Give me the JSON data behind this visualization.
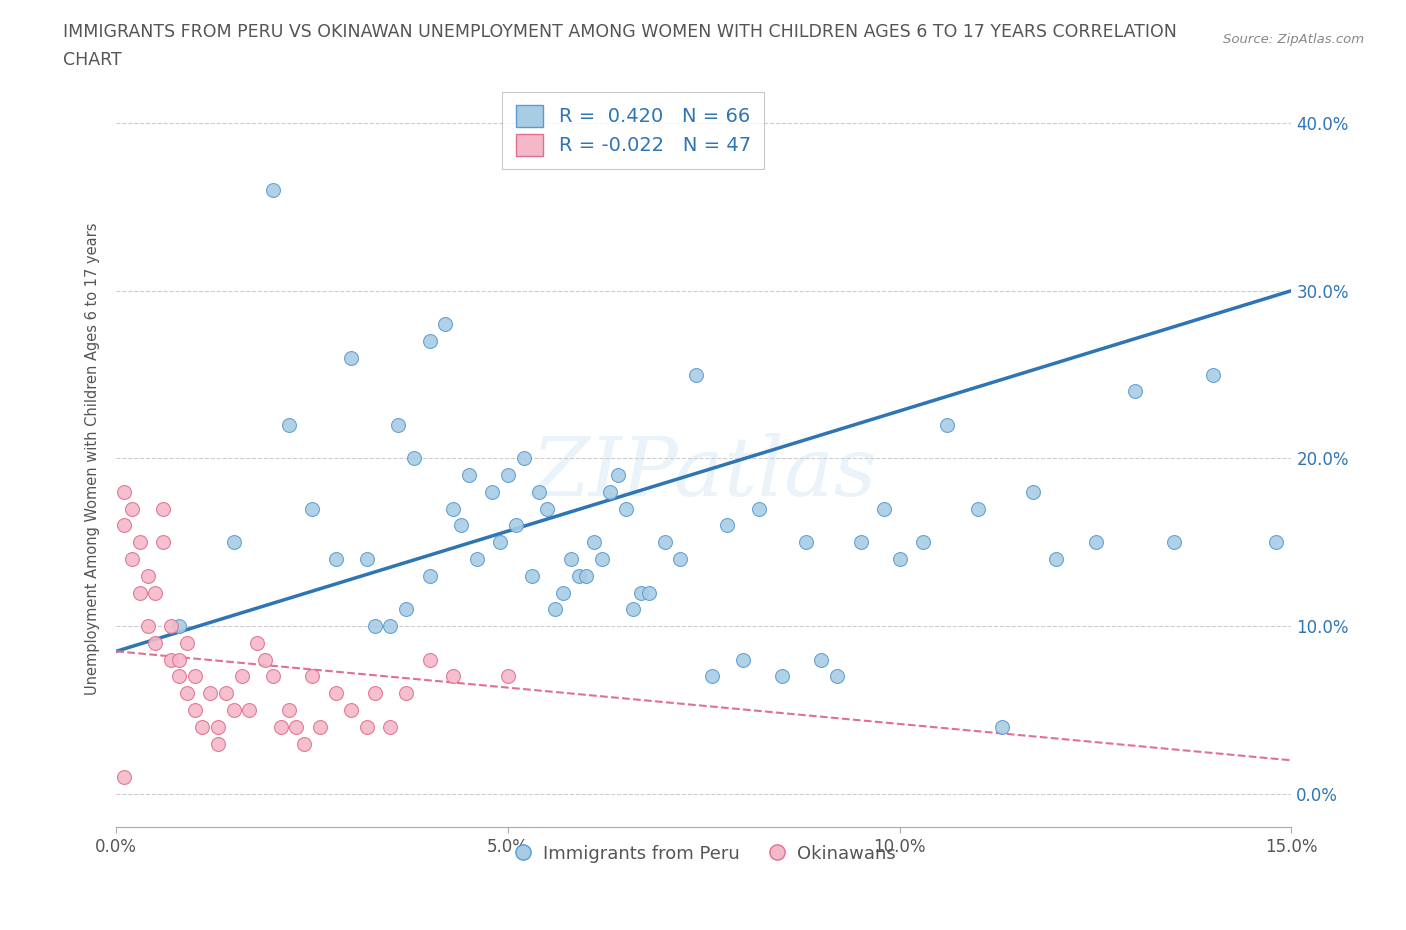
{
  "title_line1": "IMMIGRANTS FROM PERU VS OKINAWAN UNEMPLOYMENT AMONG WOMEN WITH CHILDREN AGES 6 TO 17 YEARS CORRELATION",
  "title_line2": "CHART",
  "source": "Source: ZipAtlas.com",
  "watermark": "ZIPatlas",
  "ylabel": "Unemployment Among Women with Children Ages 6 to 17 years",
  "xlim": [
    0.0,
    0.15
  ],
  "ylim": [
    -0.02,
    0.42
  ],
  "xticks": [
    0.0,
    0.05,
    0.1,
    0.15
  ],
  "xtick_labels": [
    "0.0%",
    "5.0%",
    "10.0%",
    "15.0%"
  ],
  "yticks": [
    0.0,
    0.1,
    0.2,
    0.3,
    0.4
  ],
  "ytick_labels": [
    "0.0%",
    "10.0%",
    "20.0%",
    "30.0%",
    "40.0%"
  ],
  "blue_color": "#a8cce4",
  "blue_edge_color": "#5b9bd5",
  "pink_color": "#f4b8c8",
  "pink_edge_color": "#e07090",
  "blue_line_color": "#2e75b6",
  "pink_line_color": "#e07090",
  "blue_R": 0.42,
  "blue_N": 66,
  "pink_R": -0.022,
  "pink_N": 47,
  "legend_label_blue": "Immigrants from Peru",
  "legend_label_pink": "Okinawans",
  "grid_color": "#c8c8c8",
  "background_color": "#ffffff",
  "blue_scatter_x": [
    0.008,
    0.015,
    0.02,
    0.022,
    0.025,
    0.028,
    0.03,
    0.032,
    0.033,
    0.035,
    0.036,
    0.037,
    0.038,
    0.04,
    0.04,
    0.042,
    0.043,
    0.044,
    0.045,
    0.046,
    0.048,
    0.049,
    0.05,
    0.051,
    0.052,
    0.053,
    0.054,
    0.055,
    0.056,
    0.057,
    0.058,
    0.059,
    0.06,
    0.061,
    0.062,
    0.063,
    0.064,
    0.065,
    0.066,
    0.067,
    0.068,
    0.07,
    0.072,
    0.074,
    0.076,
    0.078,
    0.08,
    0.082,
    0.085,
    0.088,
    0.09,
    0.092,
    0.095,
    0.098,
    0.1,
    0.103,
    0.106,
    0.11,
    0.113,
    0.117,
    0.12,
    0.125,
    0.13,
    0.135,
    0.14,
    0.148
  ],
  "blue_scatter_y": [
    0.1,
    0.15,
    0.36,
    0.22,
    0.17,
    0.14,
    0.26,
    0.14,
    0.1,
    0.1,
    0.22,
    0.11,
    0.2,
    0.13,
    0.27,
    0.28,
    0.17,
    0.16,
    0.19,
    0.14,
    0.18,
    0.15,
    0.19,
    0.16,
    0.2,
    0.13,
    0.18,
    0.17,
    0.11,
    0.12,
    0.14,
    0.13,
    0.13,
    0.15,
    0.14,
    0.18,
    0.19,
    0.17,
    0.11,
    0.12,
    0.12,
    0.15,
    0.14,
    0.25,
    0.07,
    0.16,
    0.08,
    0.17,
    0.07,
    0.15,
    0.08,
    0.07,
    0.15,
    0.17,
    0.14,
    0.15,
    0.22,
    0.17,
    0.04,
    0.18,
    0.14,
    0.15,
    0.24,
    0.15,
    0.25,
    0.15
  ],
  "pink_scatter_x": [
    0.001,
    0.001,
    0.002,
    0.002,
    0.003,
    0.003,
    0.004,
    0.004,
    0.005,
    0.005,
    0.006,
    0.006,
    0.007,
    0.007,
    0.008,
    0.008,
    0.009,
    0.009,
    0.01,
    0.01,
    0.011,
    0.012,
    0.013,
    0.013,
    0.014,
    0.015,
    0.016,
    0.017,
    0.018,
    0.019,
    0.02,
    0.021,
    0.022,
    0.023,
    0.024,
    0.025,
    0.026,
    0.028,
    0.03,
    0.032,
    0.033,
    0.035,
    0.037,
    0.04,
    0.043,
    0.05,
    0.001
  ],
  "pink_scatter_y": [
    0.18,
    0.16,
    0.17,
    0.14,
    0.15,
    0.12,
    0.13,
    0.1,
    0.12,
    0.09,
    0.17,
    0.15,
    0.1,
    0.08,
    0.08,
    0.07,
    0.09,
    0.06,
    0.07,
    0.05,
    0.04,
    0.06,
    0.04,
    0.03,
    0.06,
    0.05,
    0.07,
    0.05,
    0.09,
    0.08,
    0.07,
    0.04,
    0.05,
    0.04,
    0.03,
    0.07,
    0.04,
    0.06,
    0.05,
    0.04,
    0.06,
    0.04,
    0.06,
    0.08,
    0.07,
    0.07,
    0.01
  ]
}
